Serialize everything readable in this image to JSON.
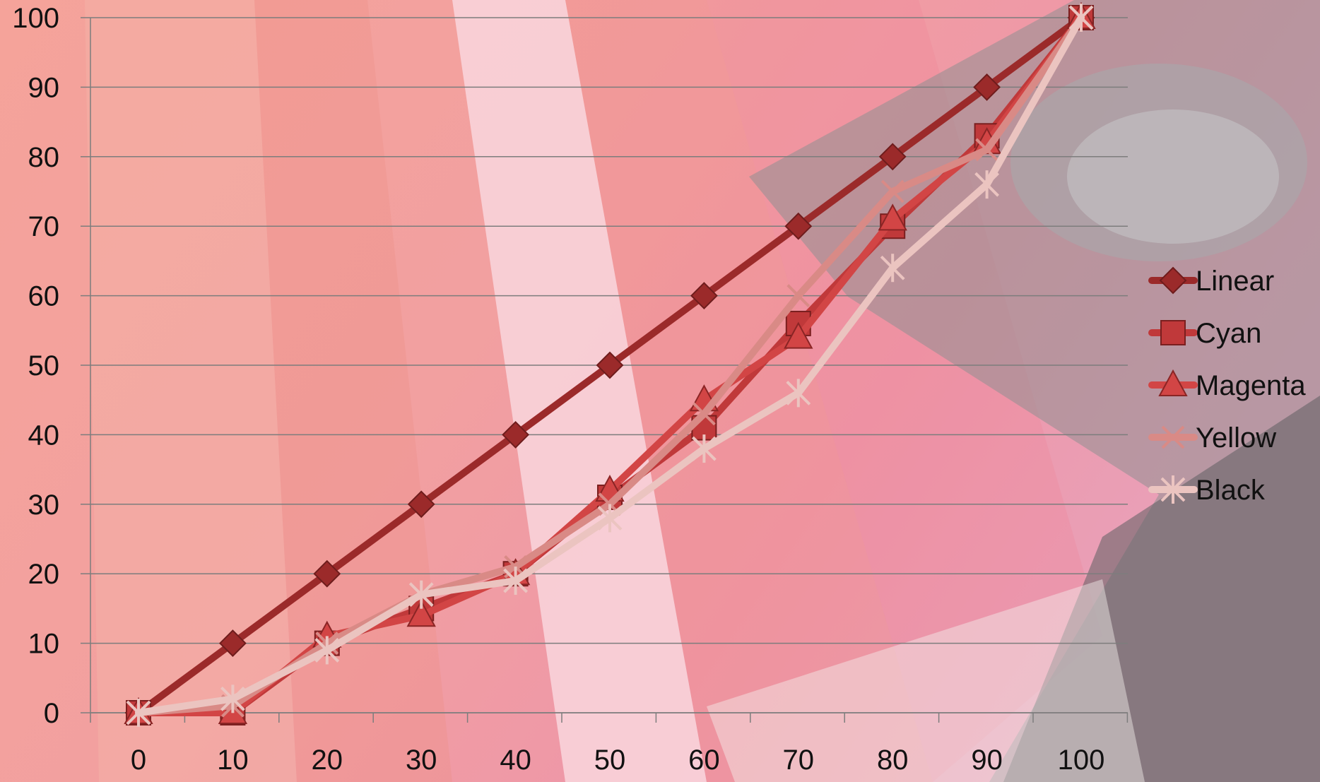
{
  "chart_data": {
    "type": "line",
    "title": "",
    "xlabel": "",
    "ylabel": "",
    "x": [
      0,
      10,
      20,
      30,
      40,
      50,
      60,
      70,
      80,
      90,
      100
    ],
    "x_tick_labels": [
      "0",
      "10",
      "20",
      "30",
      "40",
      "50",
      "60",
      "70",
      "80",
      "90",
      "100"
    ],
    "y_tick_labels": [
      "0",
      "10",
      "20",
      "30",
      "40",
      "50",
      "60",
      "70",
      "80",
      "90",
      "100"
    ],
    "ylim": [
      0,
      100
    ],
    "grid": true,
    "legend_position": "right",
    "series": [
      {
        "name": "Linear",
        "marker": "diamond",
        "color": "#9b2a2a",
        "values": [
          0,
          10,
          20,
          30,
          40,
          50,
          60,
          70,
          80,
          90,
          100
        ]
      },
      {
        "name": "Cyan",
        "marker": "square",
        "color": "#c0393a",
        "values": [
          0,
          0,
          10,
          15,
          20,
          31,
          41,
          56,
          70,
          83,
          100
        ]
      },
      {
        "name": "Magenta",
        "marker": "triangle",
        "color": "#d24545",
        "values": [
          0,
          0,
          11,
          14,
          20,
          32,
          45,
          54,
          71,
          82,
          100
        ]
      },
      {
        "name": "Yellow",
        "marker": "x",
        "color": "#d98a86",
        "values": [
          0,
          1,
          10,
          17,
          21,
          30,
          43,
          60,
          75,
          81,
          100
        ]
      },
      {
        "name": "Black",
        "marker": "star",
        "color": "#ebc4c0",
        "values": [
          0,
          2,
          9,
          17,
          19,
          28,
          38,
          46,
          64,
          76,
          100
        ]
      }
    ]
  }
}
